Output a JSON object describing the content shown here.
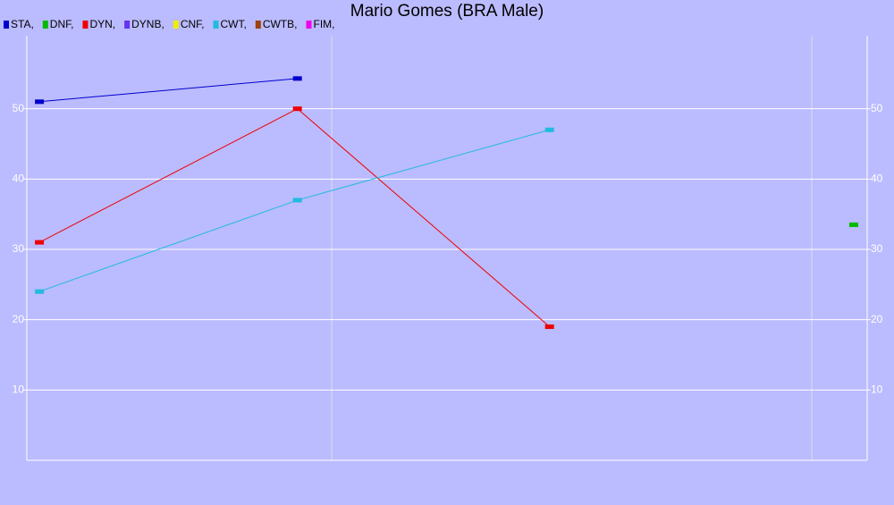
{
  "chart_data": {
    "type": "line",
    "title": "Mario Gomes (BRA Male)",
    "x": [
      1.5,
      32.2,
      62.2,
      98.4
    ],
    "xlim": [
      0,
      100
    ],
    "ylim": [
      0,
      60
    ],
    "yticks": [
      10,
      20,
      30,
      40,
      50
    ],
    "grid": true,
    "series": [
      {
        "name": "STA,",
        "color": "#0000cc",
        "values": [
          51,
          54.3,
          null,
          null
        ]
      },
      {
        "name": "DNF,",
        "color": "#00bb00",
        "values": [
          null,
          null,
          null,
          33.5
        ]
      },
      {
        "name": "DYN,",
        "color": "#ee0000",
        "values": [
          31,
          50,
          19,
          null
        ]
      },
      {
        "name": "DYNB,",
        "color": "#6633ee",
        "values": [
          null,
          null,
          null,
          null
        ]
      },
      {
        "name": "CNF,",
        "color": "#eeee00",
        "values": [
          null,
          null,
          null,
          null
        ]
      },
      {
        "name": "CWT,",
        "color": "#22bbdd",
        "values": [
          24,
          37,
          47,
          null
        ]
      },
      {
        "name": "CWTB,",
        "color": "#a0400a",
        "values": [
          null,
          null,
          null,
          null
        ]
      },
      {
        "name": "FIM,",
        "color": "#ee00ee",
        "values": [
          null,
          null,
          null,
          null
        ]
      }
    ]
  }
}
